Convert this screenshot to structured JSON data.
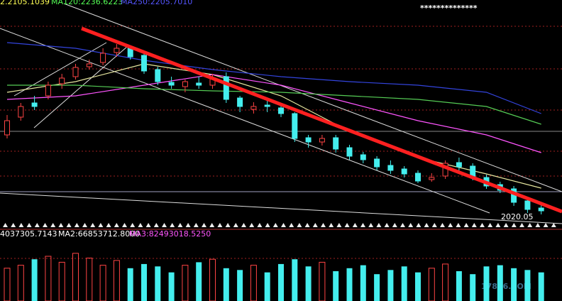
{
  "chart_data": {
    "type": "candlestick",
    "legend": [
      "2.2105.1039",
      "MA120:2236.6223",
      "MA250:2205.7010"
    ],
    "legend_colors": [
      "#ffff55",
      "#55ff55",
      "#5555ff"
    ],
    "badge": "**************",
    "date_label": "2020.05",
    "ylim": [
      0,
      330
    ],
    "open": [
      140,
      165,
      185,
      195,
      212,
      222,
      236,
      242,
      256,
      262,
      252,
      232,
      214,
      208,
      213,
      210,
      222,
      192,
      176,
      182,
      178,
      170,
      136,
      130,
      136,
      122,
      112,
      106,
      97,
      92,
      86,
      77,
      82,
      101,
      96,
      80,
      70,
      64,
      47,
      37
    ],
    "high": [
      168,
      185,
      195,
      215,
      226,
      240,
      246,
      262,
      268,
      266,
      256,
      236,
      222,
      218,
      222,
      226,
      228,
      195,
      186,
      190,
      184,
      172,
      140,
      140,
      140,
      126,
      116,
      110,
      104,
      96,
      90,
      86,
      104,
      108,
      100,
      84,
      74,
      68,
      52,
      42
    ],
    "low": [
      135,
      160,
      175,
      190,
      205,
      218,
      232,
      238,
      250,
      246,
      226,
      210,
      205,
      200,
      205,
      205,
      185,
      172,
      170,
      172,
      165,
      130,
      122,
      125,
      115,
      105,
      100,
      90,
      85,
      80,
      72,
      74,
      78,
      90,
      76,
      64,
      58,
      40,
      30,
      28
    ],
    "close": [
      160,
      180,
      180,
      210,
      220,
      235,
      240,
      255,
      262,
      250,
      230,
      215,
      210,
      215,
      210,
      220,
      190,
      180,
      180,
      180,
      170,
      135,
      130,
      135,
      120,
      110,
      105,
      95,
      90,
      85,
      75,
      80,
      100,
      95,
      80,
      68,
      62,
      45,
      35,
      33
    ],
    "ma_lines": [
      {
        "color": "#e8e8a0",
        "x": [
          0,
          5,
          10,
          15,
          20,
          25,
          30,
          35,
          39
        ],
        "values": [
          200,
          215,
          240,
          225,
          195,
          145,
          108,
          85,
          65
        ]
      },
      {
        "color": "#ff55ff",
        "x": [
          0,
          5,
          10,
          15,
          20,
          25,
          30,
          35,
          39
        ],
        "values": [
          190,
          195,
          210,
          225,
          210,
          185,
          160,
          140,
          115
        ]
      },
      {
        "color": "#55cc55",
        "x": [
          0,
          5,
          10,
          15,
          20,
          25,
          30,
          35,
          39
        ],
        "values": [
          210,
          210,
          205,
          202,
          200,
          195,
          190,
          180,
          155
        ]
      },
      {
        "color": "#3344dd",
        "x": [
          0,
          5,
          10,
          15,
          20,
          25,
          30,
          35,
          39
        ],
        "values": [
          270,
          262,
          245,
          232,
          222,
          215,
          210,
          200,
          170
        ]
      }
    ],
    "volume_header": [
      "4037305.7143",
      "MA2:66853712.8000",
      "MA3:82493018.5250"
    ],
    "volume_header_colors": [
      "#ffffff",
      "#ffffff",
      "#ff55ff"
    ],
    "volume_ylim": [
      0,
      100
    ],
    "volume": [
      55,
      60,
      70,
      75,
      65,
      80,
      72,
      60,
      68,
      55,
      62,
      58,
      48,
      60,
      65,
      70,
      55,
      52,
      60,
      48,
      62,
      70,
      58,
      65,
      50,
      55,
      60,
      45,
      52,
      58,
      48,
      55,
      62,
      50,
      45,
      58,
      60,
      55,
      52,
      48
    ],
    "watermark": "17846.COM"
  }
}
